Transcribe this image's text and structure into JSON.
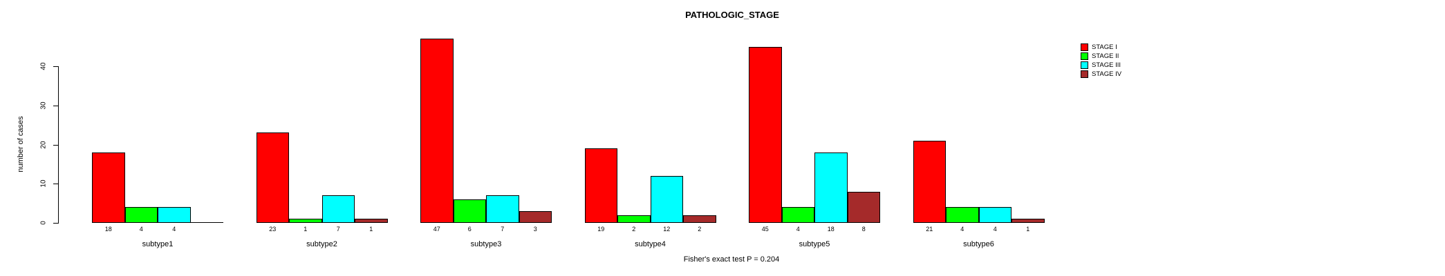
{
  "chart_data": {
    "type": "bar",
    "title": "PATHOLOGIC_STAGE",
    "ylabel": "number of cases",
    "caption": "Fisher's exact test P = 0.204",
    "categories": [
      "subtype1",
      "subtype2",
      "subtype3",
      "subtype4",
      "subtype5",
      "subtype6"
    ],
    "series": [
      {
        "name": "STAGE I",
        "color": "#FF0000",
        "values": [
          18,
          23,
          47,
          19,
          45,
          21
        ]
      },
      {
        "name": "STAGE II",
        "color": "#00FF00",
        "values": [
          4,
          1,
          6,
          2,
          4,
          4
        ]
      },
      {
        "name": "STAGE III",
        "color": "#00FFFF",
        "values": [
          4,
          7,
          7,
          12,
          18,
          4
        ]
      },
      {
        "name": "STAGE IV",
        "color": "#A52A2A",
        "values": [
          0,
          1,
          3,
          2,
          8,
          1
        ]
      }
    ],
    "yticks": [
      0,
      10,
      20,
      30,
      40
    ],
    "ylim": [
      0,
      40
    ],
    "grid": false,
    "legend_position": "top-right",
    "bar_value_labels": true,
    "colors": {
      "background": "#FFFFFF",
      "axis": "#000000",
      "text": "#000000"
    }
  }
}
